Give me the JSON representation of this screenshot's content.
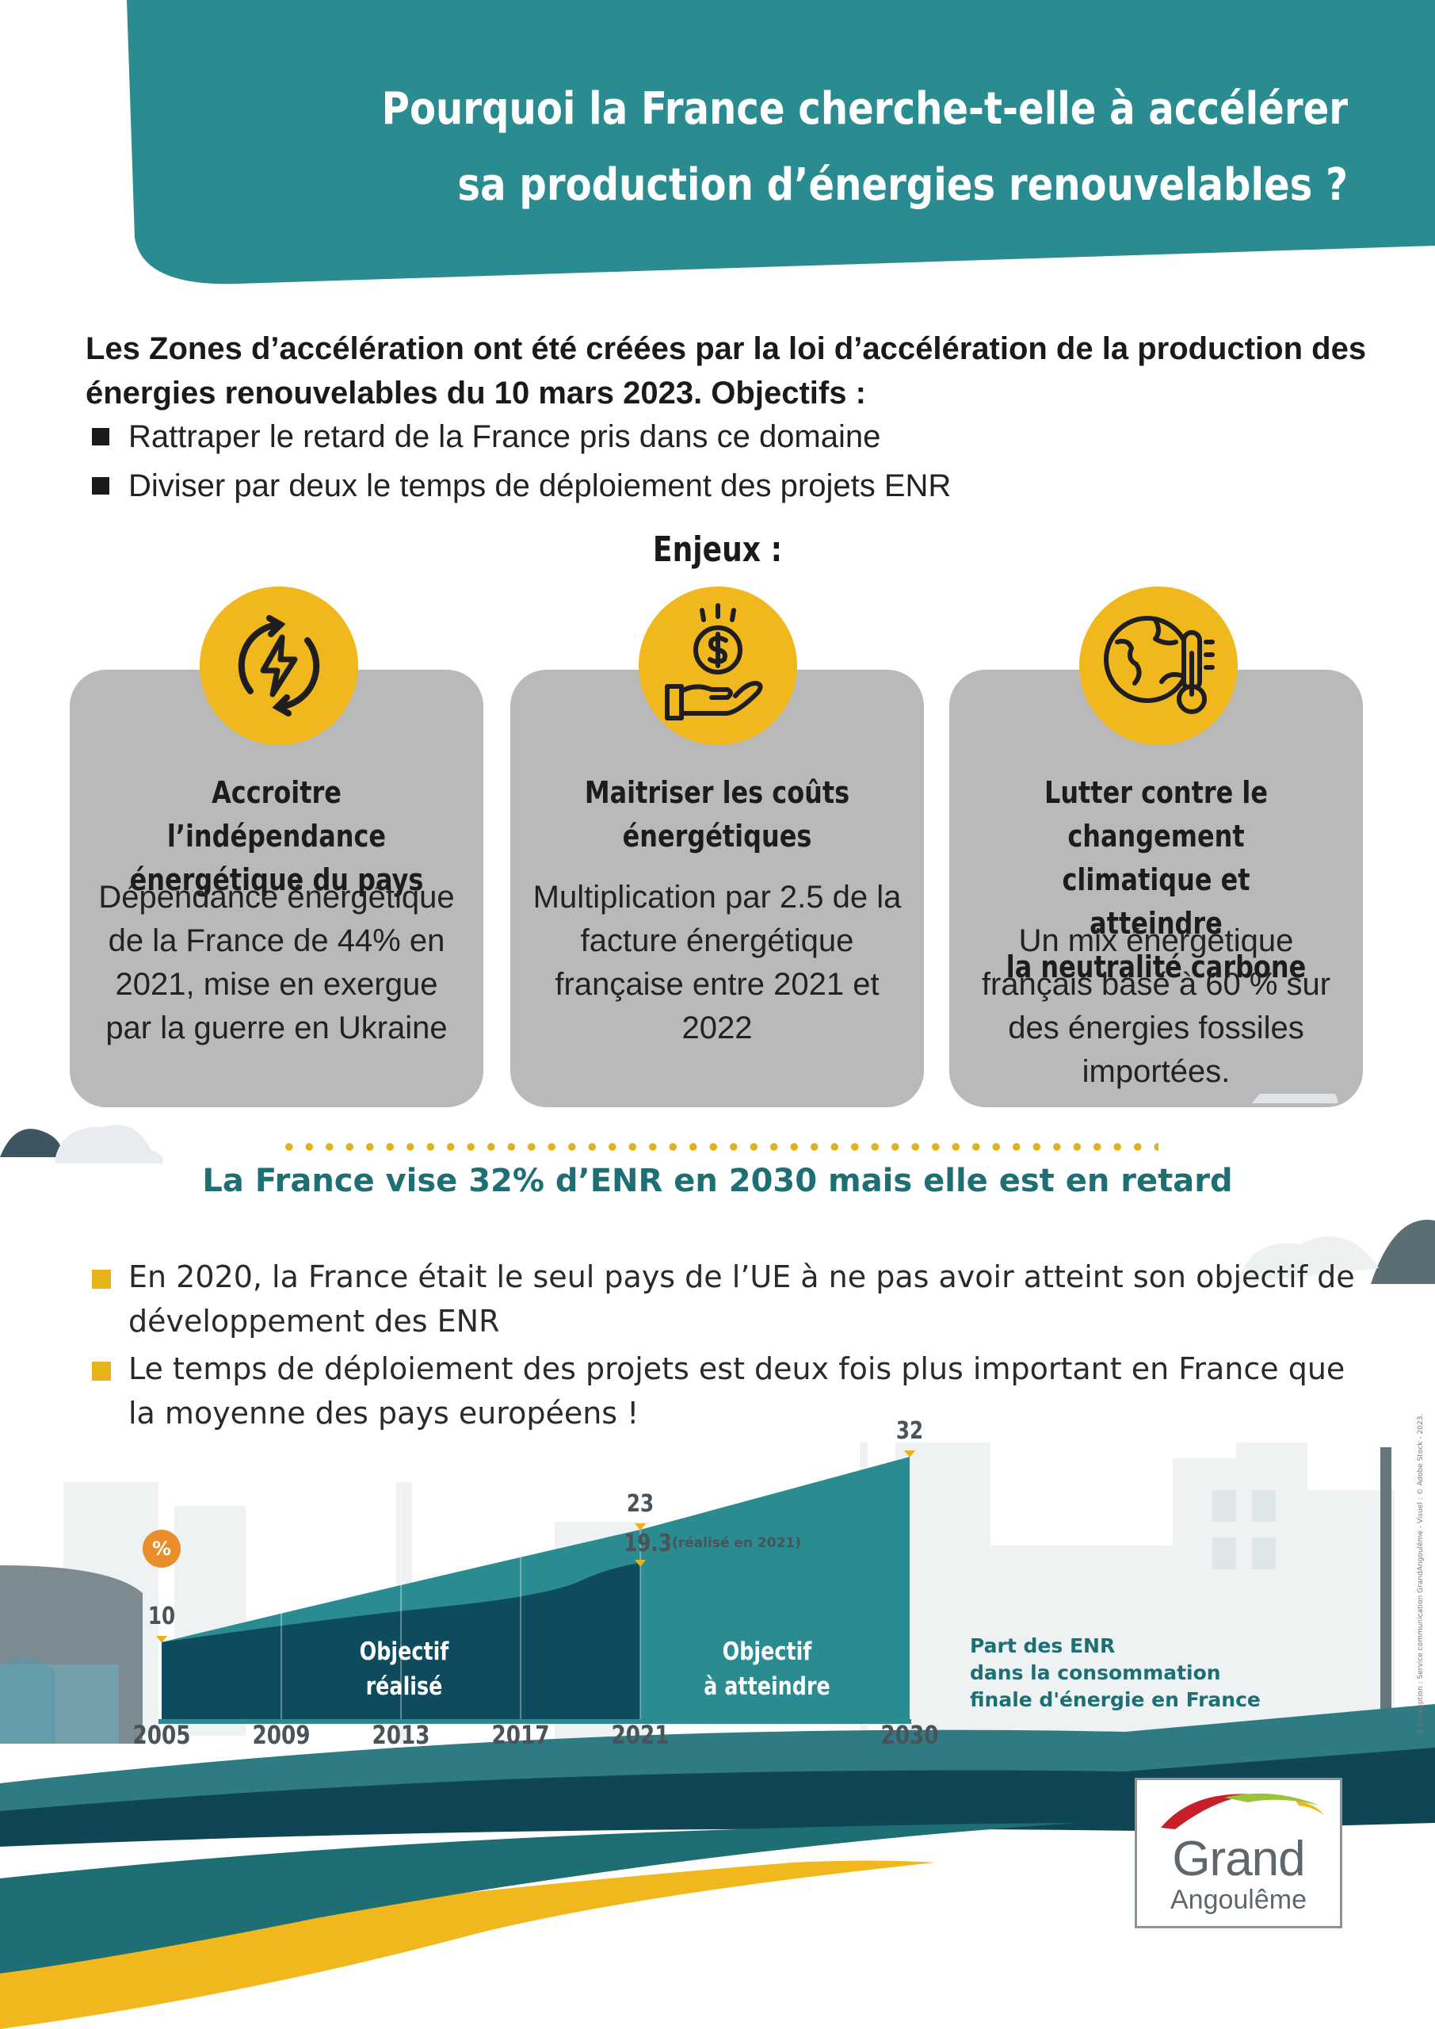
{
  "header": {
    "title_line1": "Pourquoi la France cherche-t-elle à accélérer",
    "title_line2": "sa production d’énergies renouvelables ?"
  },
  "intro": {
    "text": "Les Zones d’accélération ont été créées par la loi d’accélération de la production des énergies renouvelables du 10 mars 2023. Objectifs :",
    "bullets": [
      "Rattraper le retard de la France pris dans ce domaine",
      "Diviser par deux le temps de déploiement des projets ENR"
    ]
  },
  "enjeux_label": "Enjeux :",
  "cards": [
    {
      "icon": "energy-cycle-icon",
      "title_lines": [
        "Accroitre l’indépendance",
        "énergétique du pays"
      ],
      "body": "Dépendance énergétique de la France de 44% en 2021, mise en exergue par la guerre en Ukraine"
    },
    {
      "icon": "money-hand-icon",
      "title_lines": [
        "Maitriser les coûts",
        "énergétiques"
      ],
      "body": "Multiplication par 2.5 de la facture énergétique française entre 2021 et 2022"
    },
    {
      "icon": "earth-thermometer-icon",
      "title_lines": [
        "Lutter contre le changement",
        "climatique et atteindre",
        "la neutralité carbone"
      ],
      "body": "Un mix énergétique français basé à 60 % sur des énergies fossiles importées."
    }
  ],
  "subtitle": "La France vise 32% d’ENR en 2030 mais elle est en retard",
  "facts": [
    "En 2020, la France était le seul pays de l’UE à ne pas avoir atteint son objectif de développement des ENR",
    "Le temps de déploiement des projets est deux fois plus important en France que la moyenne des pays européens !"
  ],
  "chart": {
    "unit_badge": "%",
    "region_achieved": [
      "Objectif",
      "réalisé"
    ],
    "region_target": [
      "Objectif",
      "à atteindre"
    ],
    "realised_note": "(réalisé en 2021)",
    "legend_lines": [
      "Part des ENR",
      "dans la consommation",
      "finale d'énergie en France"
    ]
  },
  "chart_data": {
    "type": "area",
    "x_ticks": [
      "2005",
      "2009",
      "2013",
      "2017",
      "2021",
      "2030"
    ],
    "series": [
      {
        "name": "Objectif réalisé",
        "points": [
          [
            2005,
            10
          ],
          [
            2021,
            19.3
          ]
        ]
      },
      {
        "name": "Objectif à atteindre",
        "points": [
          [
            2005,
            10
          ],
          [
            2021,
            23
          ],
          [
            2030,
            32
          ]
        ]
      }
    ],
    "labels": [
      {
        "x": 2005,
        "y": 10,
        "text": "10"
      },
      {
        "x": 2021,
        "y": 23,
        "text": "23"
      },
      {
        "x": 2021,
        "y": 19.3,
        "text": "19.3"
      },
      {
        "x": 2030,
        "y": 32,
        "text": "32"
      }
    ],
    "ylabel": "%"
  },
  "credit": "© Conception : Service communication GrandAngoulême - Visuel : © Adobe Stock - 2023.",
  "logo": {
    "line1": "Grand",
    "line2": "Angoulême"
  },
  "colors": {
    "teal": "#2a8b90",
    "dark_teal": "#0e4a5c",
    "yellow": "#f0b81c",
    "card_gray": "#b9b9b9",
    "orange": "#e98e2a"
  }
}
